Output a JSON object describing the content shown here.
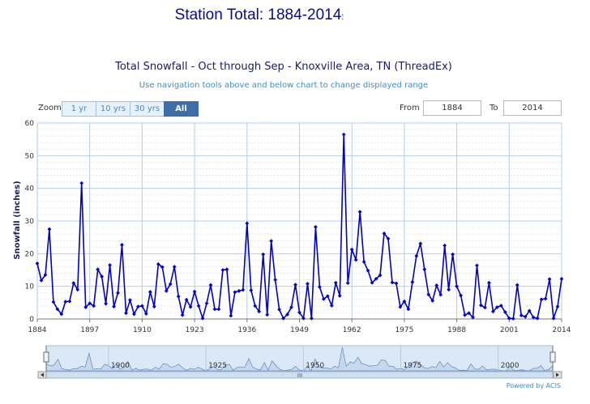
{
  "page": {
    "heading": "Station Total: 1884-2014",
    "heading_suffix": ":"
  },
  "toolbar": {
    "zoom_label": "Zoom",
    "zoom_buttons": [
      "1 yr",
      "10 yrs",
      "30 yrs",
      "All"
    ],
    "zoom_active": "All",
    "from_label": "From",
    "from_value": "1884",
    "to_label": "To",
    "to_value": "2014"
  },
  "credits": "Powered by ACIS",
  "colors": {
    "series": "#0000cc",
    "navigator_area": "#c5d8ee",
    "navigator_line": "#6f93c4",
    "active_button": "#3d6ea8",
    "title": "#1a1a66",
    "subtitle": "#3b8fc4"
  },
  "chart_data": {
    "type": "line",
    "title": "Total Snowfall - Oct through Sep - Knoxville Area, TN (ThreadEx)",
    "subtitle": "Use navigation tools above and below chart to change displayed range",
    "xlabel": "",
    "ylabel": "Snowfall (inches)",
    "xlim": [
      1884,
      2014
    ],
    "ylim": [
      0,
      60
    ],
    "x_ticks": [
      1884,
      1897,
      1910,
      1923,
      1936,
      1949,
      1962,
      1975,
      1988,
      2001,
      2014
    ],
    "y_ticks": [
      0,
      10,
      20,
      30,
      40,
      50,
      60
    ],
    "grid": true,
    "markers": "diamond",
    "series": [
      {
        "name": "",
        "x": [
          1884,
          1885,
          1886,
          1887,
          1888,
          1889,
          1890,
          1891,
          1892,
          1893,
          1894,
          1895,
          1896,
          1897,
          1898,
          1899,
          1900,
          1901,
          1902,
          1903,
          1904,
          1905,
          1906,
          1907,
          1908,
          1909,
          1910,
          1911,
          1912,
          1913,
          1914,
          1915,
          1916,
          1917,
          1918,
          1919,
          1920,
          1921,
          1922,
          1923,
          1924,
          1925,
          1926,
          1927,
          1928,
          1929,
          1930,
          1931,
          1932,
          1933,
          1934,
          1935,
          1936,
          1937,
          1938,
          1939,
          1940,
          1941,
          1942,
          1943,
          1944,
          1945,
          1946,
          1947,
          1948,
          1949,
          1950,
          1951,
          1952,
          1953,
          1954,
          1955,
          1956,
          1957,
          1958,
          1959,
          1960,
          1961,
          1962,
          1963,
          1964,
          1965,
          1966,
          1967,
          1968,
          1969,
          1970,
          1971,
          1972,
          1973,
          1974,
          1975,
          1976,
          1977,
          1978,
          1979,
          1980,
          1981,
          1982,
          1983,
          1984,
          1985,
          1986,
          1987,
          1988,
          1989,
          1990,
          1991,
          1992,
          1993,
          1994,
          1995,
          1996,
          1997,
          1998,
          1999,
          2000,
          2001,
          2002,
          2003,
          2004,
          2005,
          2006,
          2007,
          2008,
          2009,
          2010,
          2011,
          2012,
          2013,
          2014
        ],
        "values": [
          17.0,
          11.8,
          13.5,
          27.5,
          5.2,
          3.0,
          1.5,
          5.3,
          5.4,
          11.0,
          9.0,
          41.6,
          3.6,
          4.8,
          4.0,
          15.2,
          13.0,
          4.7,
          16.5,
          3.8,
          8.0,
          22.7,
          1.8,
          5.8,
          1.5,
          3.8,
          4.0,
          1.6,
          8.3,
          3.8,
          16.8,
          15.9,
          8.6,
          10.7,
          16.0,
          6.9,
          1.2,
          5.9,
          3.7,
          8.4,
          4.0,
          0.2,
          4.8,
          10.4,
          3.0,
          3.0,
          15.0,
          15.2,
          1.0,
          8.2,
          8.6,
          8.9,
          29.3,
          8.8,
          4.0,
          2.3,
          19.8,
          1.3,
          23.9,
          12.0,
          2.9,
          0.2,
          1.4,
          3.6,
          10.5,
          2.0,
          0.2,
          10.8,
          0.2,
          28.2,
          9.8,
          6.1,
          7.0,
          4.1,
          11.1,
          7.1,
          56.5,
          11.0,
          21.3,
          18.1,
          32.8,
          17.5,
          14.8,
          11.1,
          12.3,
          13.4,
          26.2,
          24.6,
          11.2,
          10.9,
          3.7,
          5.4,
          3.0,
          11.3,
          19.3,
          23.1,
          15.2,
          7.5,
          5.6,
          10.3,
          7.4,
          22.5,
          9.0,
          19.8,
          10.0,
          7.2,
          1.2,
          1.8,
          0.5,
          16.4,
          4.2,
          3.5,
          11.1,
          2.3,
          3.6,
          4.1,
          2.1,
          0.2,
          0.1,
          10.4,
          1.1,
          0.7,
          2.5,
          0.5,
          0.2,
          6.0,
          6.2,
          12.2,
          0.2,
          3.8,
          12.3
        ]
      }
    ],
    "navigator": {
      "labels": [
        "1900",
        "1925",
        "1950",
        "1975",
        "2000"
      ],
      "range": [
        1884,
        2014
      ],
      "scroll_label": "III"
    }
  }
}
